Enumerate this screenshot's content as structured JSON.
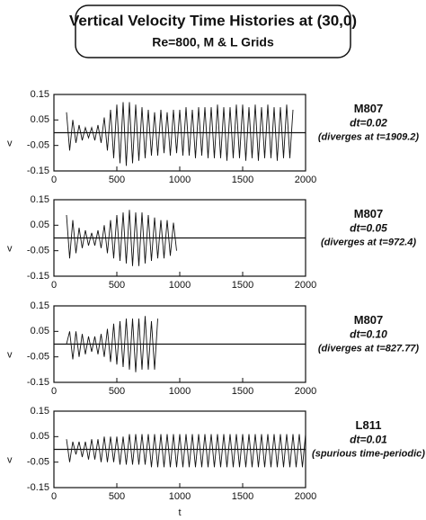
{
  "title": "Vertical Velocity Time Histories at (30,0)",
  "subtitle": "Re=800, M & L Grids",
  "chart_data": [
    {
      "type": "line",
      "ylabel": "v",
      "xlim": [
        0,
        2000
      ],
      "ylim": [
        -0.15,
        0.15
      ],
      "xticks": [
        0,
        500,
        1000,
        1500,
        2000
      ],
      "yticks": [
        -0.15,
        -0.05,
        0.05,
        0.15
      ],
      "annotations": [
        "M807",
        "dt=0.02",
        "(diverges at t=1909.2)"
      ],
      "color": "#111111",
      "x": [
        100,
        125,
        150,
        175,
        200,
        225,
        250,
        275,
        300,
        325,
        350,
        375,
        400,
        425,
        450,
        475,
        500,
        525,
        550,
        575,
        600,
        625,
        650,
        675,
        700,
        725,
        750,
        775,
        800,
        825,
        850,
        875,
        900,
        925,
        950,
        975,
        1000,
        1025,
        1050,
        1075,
        1100,
        1125,
        1150,
        1175,
        1200,
        1225,
        1250,
        1275,
        1300,
        1325,
        1350,
        1375,
        1400,
        1425,
        1450,
        1475,
        1500,
        1525,
        1550,
        1575,
        1600,
        1625,
        1650,
        1675,
        1700,
        1725,
        1750,
        1775,
        1800,
        1825,
        1850,
        1875,
        1900
      ],
      "values": [
        0.08,
        -0.07,
        0.05,
        -0.04,
        0.03,
        -0.03,
        0.02,
        -0.02,
        0.02,
        -0.03,
        0.03,
        -0.04,
        0.06,
        -0.07,
        0.09,
        -0.1,
        0.11,
        -0.12,
        0.12,
        -0.13,
        0.12,
        -0.12,
        0.11,
        -0.11,
        0.1,
        -0.1,
        0.09,
        -0.09,
        0.08,
        -0.09,
        0.09,
        -0.08,
        0.08,
        -0.09,
        0.09,
        -0.08,
        0.09,
        -0.09,
        0.1,
        -0.09,
        0.09,
        -0.1,
        0.1,
        -0.09,
        0.1,
        -0.1,
        0.1,
        -0.1,
        0.11,
        -0.1,
        0.1,
        -0.11,
        0.1,
        -0.1,
        0.11,
        -0.1,
        0.11,
        -0.11,
        0.1,
        -0.1,
        0.11,
        -0.11,
        0.1,
        -0.1,
        0.11,
        -0.1,
        0.1,
        -0.11,
        0.1,
        -0.1,
        0.11,
        -0.1,
        0.09
      ]
    },
    {
      "type": "line",
      "ylabel": "v",
      "xlim": [
        0,
        2000
      ],
      "ylim": [
        -0.15,
        0.15
      ],
      "xticks": [
        0,
        500,
        1000,
        1500,
        2000
      ],
      "yticks": [
        -0.15,
        -0.05,
        0.05,
        0.15
      ],
      "annotations": [
        "M807",
        "dt=0.05",
        "(diverges at t=972.4)"
      ],
      "color": "#111111",
      "x": [
        100,
        125,
        150,
        175,
        200,
        225,
        250,
        275,
        300,
        325,
        350,
        375,
        400,
        425,
        450,
        475,
        500,
        525,
        550,
        575,
        600,
        625,
        650,
        675,
        700,
        725,
        750,
        775,
        800,
        825,
        850,
        875,
        900,
        925,
        950,
        975
      ],
      "values": [
        0.09,
        -0.08,
        0.07,
        -0.06,
        0.04,
        -0.04,
        0.03,
        -0.03,
        0.02,
        -0.03,
        0.03,
        -0.04,
        0.05,
        -0.06,
        0.07,
        -0.08,
        0.09,
        -0.09,
        0.1,
        -0.1,
        0.11,
        -0.11,
        0.1,
        -0.11,
        0.1,
        -0.1,
        0.09,
        -0.09,
        0.08,
        -0.08,
        0.07,
        -0.08,
        0.07,
        -0.07,
        0.06,
        -0.05
      ]
    },
    {
      "type": "line",
      "ylabel": "v",
      "xlim": [
        0,
        2000
      ],
      "ylim": [
        -0.15,
        0.15
      ],
      "xticks": [
        0,
        500,
        1000,
        1500,
        2000
      ],
      "yticks": [
        -0.15,
        -0.05,
        0.05,
        0.15
      ],
      "annotations": [
        "M807",
        "dt=0.10",
        "(diverges at t=827.77)"
      ],
      "color": "#111111",
      "x": [
        100,
        125,
        150,
        175,
        200,
        225,
        250,
        275,
        300,
        325,
        350,
        375,
        400,
        425,
        450,
        475,
        500,
        525,
        550,
        575,
        600,
        625,
        650,
        675,
        700,
        725,
        750,
        775,
        800,
        825
      ],
      "values": [
        0,
        0.05,
        -0.06,
        0.05,
        -0.05,
        0.04,
        -0.04,
        0.03,
        -0.03,
        0.03,
        -0.04,
        0.04,
        -0.05,
        0.06,
        -0.07,
        0.08,
        -0.08,
        0.09,
        -0.09,
        0.1,
        -0.1,
        0.1,
        -0.11,
        0.1,
        -0.1,
        0.11,
        -0.1,
        0.09,
        -0.1,
        0.1
      ]
    },
    {
      "type": "line",
      "ylabel": "v",
      "xlabel": "t",
      "xlim": [
        0,
        2000
      ],
      "ylim": [
        -0.15,
        0.15
      ],
      "xticks": [
        0,
        500,
        1000,
        1500,
        2000
      ],
      "yticks": [
        -0.15,
        -0.05,
        0.05,
        0.15
      ],
      "annotations": [
        "L811",
        "dt=0.01",
        "(spurious time-periodic)"
      ],
      "color": "#111111",
      "x": [
        100,
        125,
        150,
        175,
        200,
        225,
        250,
        275,
        300,
        325,
        350,
        375,
        400,
        425,
        450,
        475,
        500,
        525,
        550,
        575,
        600,
        625,
        650,
        675,
        700,
        725,
        750,
        775,
        800,
        825,
        850,
        875,
        900,
        925,
        950,
        975,
        1000,
        1025,
        1050,
        1075,
        1100,
        1125,
        1150,
        1175,
        1200,
        1225,
        1250,
        1275,
        1300,
        1325,
        1350,
        1375,
        1400,
        1425,
        1450,
        1475,
        1500,
        1525,
        1550,
        1575,
        1600,
        1625,
        1650,
        1675,
        1700,
        1725,
        1750,
        1775,
        1800,
        1825,
        1850,
        1875,
        1900,
        1925,
        1950,
        1975,
        2000
      ],
      "values": [
        0.04,
        -0.05,
        0.03,
        -0.02,
        0.03,
        -0.03,
        0.03,
        -0.04,
        0.04,
        -0.04,
        0.04,
        -0.05,
        0.05,
        -0.05,
        0.05,
        -0.05,
        0.05,
        -0.06,
        0.05,
        -0.06,
        0.06,
        -0.06,
        0.06,
        -0.06,
        0.06,
        -0.06,
        0.06,
        -0.07,
        0.06,
        -0.07,
        0.06,
        -0.07,
        0.06,
        -0.07,
        0.06,
        -0.07,
        0.06,
        -0.07,
        0.06,
        -0.07,
        0.06,
        -0.07,
        0.06,
        -0.07,
        0.06,
        -0.07,
        0.06,
        -0.07,
        0.06,
        -0.07,
        0.06,
        -0.07,
        0.06,
        -0.07,
        0.06,
        -0.07,
        0.06,
        -0.07,
        0.06,
        -0.07,
        0.06,
        -0.07,
        0.06,
        -0.07,
        0.06,
        -0.07,
        0.06,
        -0.07,
        0.06,
        -0.07,
        0.06,
        -0.07,
        0.06,
        -0.07,
        0.06,
        -0.07,
        0.06
      ]
    }
  ]
}
